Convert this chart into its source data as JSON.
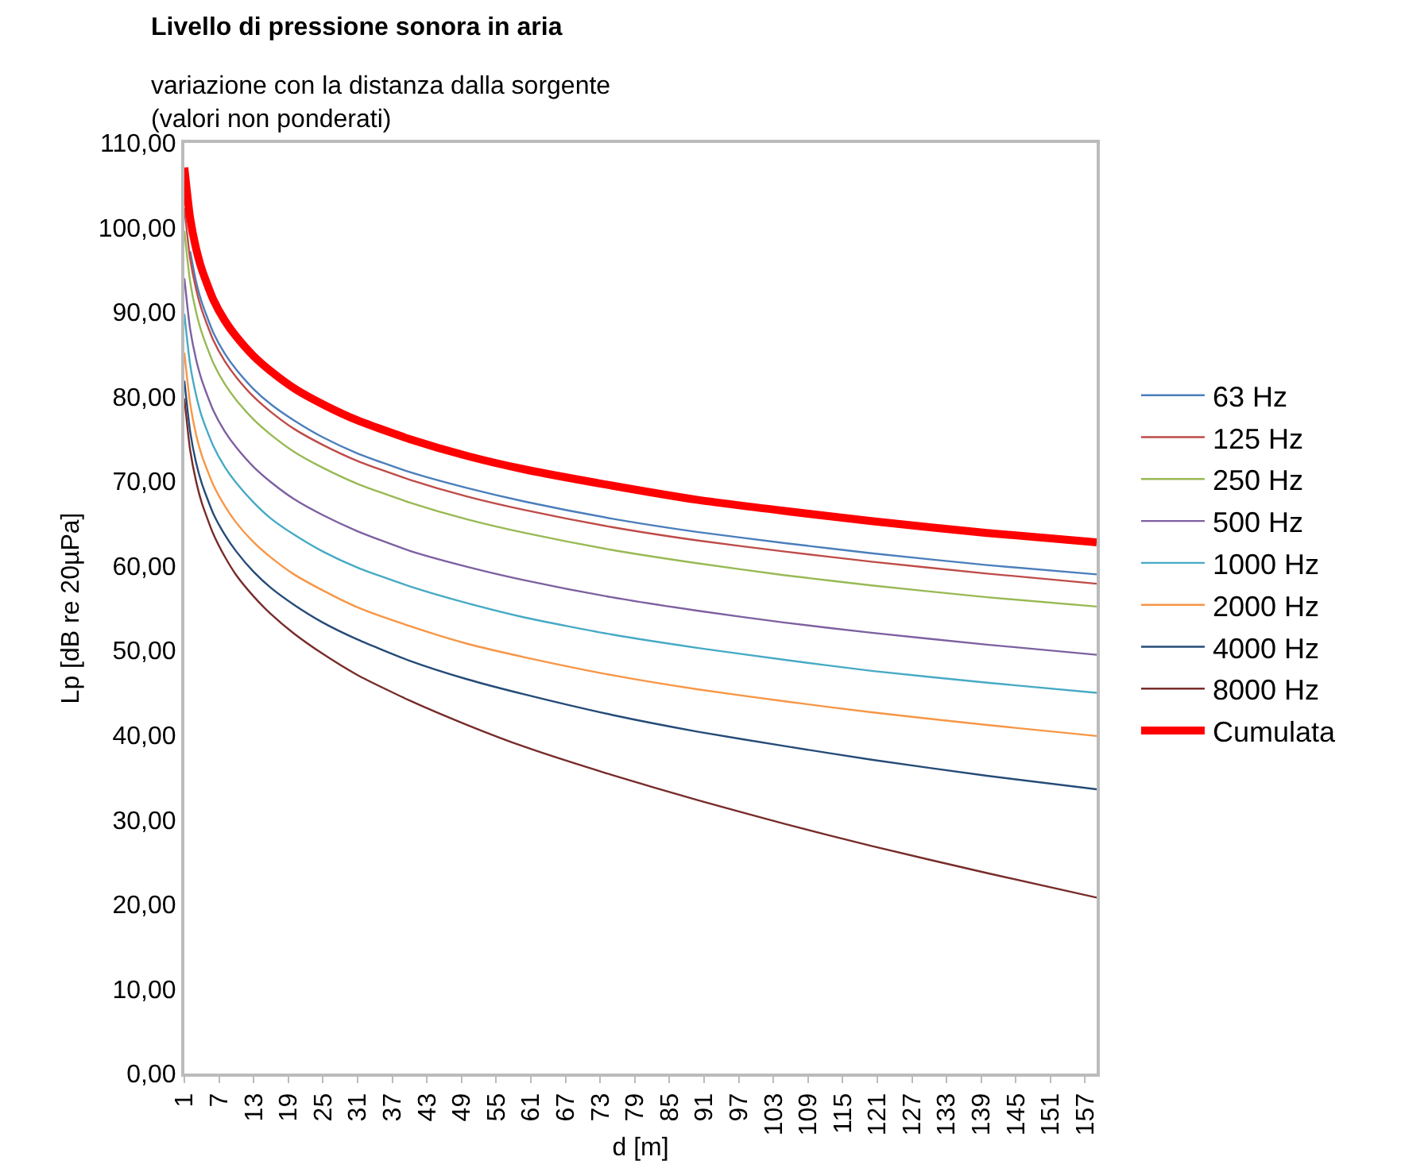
{
  "chart_data": {
    "type": "line",
    "title": "Livello di pressione sonora in aria",
    "subtitle": "variazione con la distanza dalla sorgente\n(valori non ponderati)",
    "xlabel": "d [m]",
    "ylabel": "Lp [dB re 20µPa]",
    "x": [
      1,
      2,
      3,
      4,
      6,
      8,
      10,
      13,
      16,
      20,
      25,
      31,
      40,
      50,
      60,
      75,
      90,
      105,
      120,
      140,
      159
    ],
    "xlim": [
      1,
      159
    ],
    "xticks": [
      1,
      7,
      13,
      19,
      25,
      31,
      37,
      43,
      49,
      55,
      61,
      67,
      73,
      79,
      85,
      91,
      97,
      103,
      109,
      115,
      121,
      127,
      133,
      139,
      145,
      151,
      157
    ],
    "ylim": [
      0,
      110
    ],
    "yticks": [
      {
        "value": 0,
        "label": "0,00"
      },
      {
        "value": 10,
        "label": "10,00"
      },
      {
        "value": 20,
        "label": "20,00"
      },
      {
        "value": 30,
        "label": "30,00"
      },
      {
        "value": 40,
        "label": "40,00"
      },
      {
        "value": 50,
        "label": "50,00"
      },
      {
        "value": 60,
        "label": "60,00"
      },
      {
        "value": 70,
        "label": "70,00"
      },
      {
        "value": 80,
        "label": "80,00"
      },
      {
        "value": 90,
        "label": "90,00"
      },
      {
        "value": 100,
        "label": "100,00"
      },
      {
        "value": 110,
        "label": "110,00"
      }
    ],
    "grid": false,
    "legend": "right",
    "marker": "none",
    "line_style": "solid",
    "series": [
      {
        "name": "63 Hz",
        "color": "#4a7ebb",
        "values": [
          null,
          97.2,
          93.7,
          91.2,
          87.6,
          85.1,
          83.2,
          80.9,
          79.1,
          77.2,
          75.2,
          73.3,
          71.1,
          69.2,
          67.6,
          65.6,
          64.0,
          62.7,
          61.5,
          60.1,
          59.0
        ]
      },
      {
        "name": "125 Hz",
        "color": "#be4b48",
        "values": [
          102.3,
          96.3,
          92.8,
          90.3,
          86.7,
          84.2,
          82.3,
          80.0,
          78.2,
          76.2,
          74.3,
          72.4,
          70.2,
          68.2,
          66.6,
          64.6,
          63.0,
          61.7,
          60.5,
          59.1,
          57.9
        ]
      },
      {
        "name": "250 Hz",
        "color": "#98b954",
        "values": [
          99.6,
          93.6,
          90.1,
          87.6,
          84.0,
          81.5,
          79.6,
          77.3,
          75.5,
          73.5,
          71.6,
          69.7,
          67.5,
          65.5,
          63.9,
          61.9,
          60.3,
          58.9,
          57.7,
          56.3,
          55.2
        ]
      },
      {
        "name": "500 Hz",
        "color": "#7d60a0",
        "values": [
          94.0,
          88.0,
          84.5,
          82.0,
          78.4,
          75.9,
          74.0,
          71.7,
          69.9,
          67.9,
          66.0,
          64.1,
          61.8,
          59.9,
          58.3,
          56.3,
          54.7,
          53.3,
          52.1,
          50.7,
          49.5
        ]
      },
      {
        "name": "1000 Hz",
        "color": "#46aac5",
        "values": [
          89.8,
          83.8,
          80.3,
          77.7,
          74.2,
          71.7,
          69.8,
          67.5,
          65.6,
          63.7,
          61.7,
          59.8,
          57.6,
          55.6,
          53.9,
          51.9,
          50.3,
          48.9,
          47.6,
          46.2,
          45.0
        ]
      },
      {
        "name": "2000 Hz",
        "color": "#f79646",
        "values": [
          85.2,
          79.2,
          75.6,
          73.1,
          69.6,
          67.1,
          65.1,
          62.8,
          61.0,
          59.0,
          57.1,
          55.1,
          52.9,
          50.8,
          49.2,
          47.1,
          45.4,
          44.0,
          42.7,
          41.2,
          39.9
        ]
      },
      {
        "name": "4000 Hz",
        "color": "#254b77",
        "values": [
          81.9,
          75.9,
          72.3,
          69.8,
          66.2,
          63.7,
          61.7,
          59.3,
          57.4,
          55.4,
          53.3,
          51.3,
          48.8,
          46.6,
          44.8,
          42.4,
          40.4,
          38.7,
          37.1,
          35.2,
          33.6
        ]
      },
      {
        "name": "8000 Hz",
        "color": "#772c2a",
        "values": [
          79.8,
          73.7,
          70.1,
          67.5,
          63.8,
          61.1,
          58.9,
          56.4,
          54.3,
          52.0,
          49.6,
          47.1,
          44.1,
          41.2,
          38.6,
          35.3,
          32.3,
          29.5,
          26.9,
          23.7,
          20.8
        ]
      },
      {
        "name": "Cumulata",
        "color": "#ff0000",
        "values": [
          107.1,
          101.1,
          97.6,
          95.1,
          91.5,
          89.0,
          87.1,
          84.8,
          83.0,
          81.0,
          79.1,
          77.2,
          75.0,
          73.0,
          71.4,
          69.5,
          67.8,
          66.5,
          65.3,
          63.9,
          62.8
        ]
      }
    ]
  }
}
